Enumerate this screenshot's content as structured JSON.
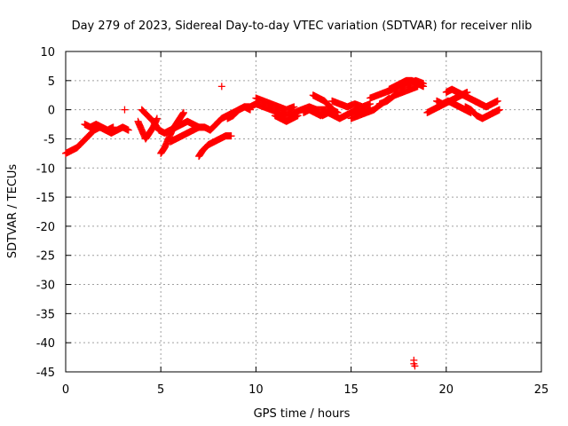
{
  "chart_data": {
    "type": "scatter",
    "title": "Day 279 of 2023, Sidereal Day-to-day VTEC variation (SDTVAR) for receiver nlib",
    "xlabel": "GPS time / hours",
    "ylabel": "SDTVAR / TECUs",
    "xlim": [
      0,
      25
    ],
    "ylim": [
      -45,
      10
    ],
    "grid": true,
    "marker": "plus",
    "color": "#ff0000",
    "x_ticks": [
      "0",
      "5",
      "10",
      "15",
      "20",
      "25"
    ],
    "y_ticks": [
      "10",
      "5",
      "0",
      "-5",
      "-10",
      "-15",
      "-20",
      "-25",
      "-30",
      "-35",
      "-40",
      "-45"
    ],
    "series": [
      {
        "name": "SDTVAR",
        "segments": [
          {
            "x": [
              0.0,
              0.3,
              0.6,
              0.9,
              1.2,
              1.5,
              1.8,
              2.1,
              2.4,
              2.7,
              3.0,
              3.3
            ],
            "y": [
              -7.5,
              -7.0,
              -6.5,
              -5.5,
              -4.5,
              -3.5,
              -3.0,
              -3.5,
              -4.0,
              -3.5,
              -3.0,
              -3.5
            ]
          },
          {
            "x": [
              1.0,
              1.3,
              1.6,
              1.9,
              2.2,
              2.5
            ],
            "y": [
              -2.5,
              -3.0,
              -2.5,
              -3.0,
              -3.5,
              -3.0
            ]
          },
          {
            "x": [
              3.8,
              4.0,
              4.2,
              4.4,
              4.6,
              4.8
            ],
            "y": [
              -2.0,
              -3.5,
              -5.0,
              -4.0,
              -3.0,
              -1.5
            ]
          },
          {
            "x": [
              4.0,
              4.3,
              4.6,
              4.9,
              5.2,
              5.5,
              5.8,
              6.1,
              6.4,
              6.7,
              7.0
            ],
            "y": [
              0.0,
              -1.0,
              -2.0,
              -3.5,
              -4.0,
              -3.5,
              -3.0,
              -2.5,
              -2.0,
              -2.5,
              -3.0
            ]
          },
          {
            "x": [
              5.0,
              5.2,
              5.4,
              5.6,
              5.8,
              6.0,
              6.2
            ],
            "y": [
              -7.5,
              -6.5,
              -5.0,
              -3.5,
              -2.5,
              -1.5,
              -0.5
            ]
          },
          {
            "x": [
              5.5,
              5.8,
              6.1,
              6.4,
              6.7,
              7.0
            ],
            "y": [
              -5.5,
              -5.0,
              -4.5,
              -4.0,
              -3.5,
              -3.0
            ]
          },
          {
            "x": [
              7.0,
              7.2,
              7.5,
              7.8,
              8.1,
              8.4,
              8.7
            ],
            "y": [
              -8.0,
              -7.0,
              -6.0,
              -5.5,
              -5.0,
              -4.5,
              -4.5
            ]
          },
          {
            "x": [
              7.0,
              7.3,
              7.6,
              7.9,
              8.2,
              8.5,
              8.8,
              9.1,
              9.4,
              9.7,
              10.0
            ],
            "y": [
              -3.0,
              -3.0,
              -3.5,
              -2.5,
              -1.5,
              -1.0,
              -0.5,
              0.0,
              0.5,
              0.5,
              1.0
            ]
          },
          {
            "x": [
              8.5,
              8.8,
              9.1,
              9.4,
              9.7
            ],
            "y": [
              -1.5,
              -1.0,
              0.0,
              0.5,
              0.0
            ]
          },
          {
            "x": [
              10.0,
              10.4,
              10.8,
              11.2,
              11.6,
              12.0,
              12.4,
              12.8,
              13.2,
              13.6,
              14.0
            ],
            "y": [
              1.0,
              0.5,
              0.0,
              -0.5,
              -1.0,
              -0.5,
              0.0,
              0.5,
              0.0,
              0.0,
              0.0
            ]
          },
          {
            "x": [
              10.0,
              10.4,
              10.8,
              11.2,
              11.6,
              12.0
            ],
            "y": [
              2.0,
              1.5,
              1.0,
              0.5,
              0.0,
              0.5
            ]
          },
          {
            "x": [
              11.0,
              11.3,
              11.6,
              11.9,
              12.2
            ],
            "y": [
              -1.0,
              -1.5,
              -2.0,
              -1.5,
              -1.0
            ]
          },
          {
            "x": [
              12.5,
              12.8,
              13.1,
              13.4,
              13.7,
              14.0,
              14.3
            ],
            "y": [
              -0.5,
              0.0,
              -0.5,
              -1.0,
              -0.5,
              0.0,
              -0.5
            ]
          },
          {
            "x": [
              13.0,
              13.3,
              13.6,
              13.9,
              14.2
            ],
            "y": [
              2.5,
              2.0,
              1.5,
              0.5,
              -0.5
            ]
          },
          {
            "x": [
              13.5,
              13.8,
              14.1,
              14.4,
              14.7,
              15.0,
              15.3,
              15.6,
              16.0
            ],
            "y": [
              -1.0,
              -0.5,
              -1.0,
              -1.5,
              -1.0,
              -0.5,
              0.0,
              -0.5,
              0.0
            ]
          },
          {
            "x": [
              14.0,
              14.4,
              14.8,
              15.2,
              15.6,
              16.0
            ],
            "y": [
              1.5,
              1.0,
              0.5,
              1.0,
              0.5,
              1.0
            ]
          },
          {
            "x": [
              15.0,
              15.4,
              15.8,
              16.2,
              16.6,
              17.0
            ],
            "y": [
              -1.5,
              -1.0,
              -0.5,
              0.0,
              1.0,
              2.0
            ]
          },
          {
            "x": [
              16.0,
              16.4,
              16.8,
              17.2,
              17.6,
              18.0,
              18.4,
              18.8
            ],
            "y": [
              2.0,
              2.5,
              3.0,
              3.5,
              4.0,
              4.5,
              5.0,
              4.5
            ]
          },
          {
            "x": [
              16.5,
              16.9,
              17.3,
              17.7,
              18.1,
              18.5
            ],
            "y": [
              1.0,
              1.5,
              2.5,
              3.0,
              3.5,
              4.0
            ]
          },
          {
            "x": [
              17.0,
              17.3,
              17.6,
              17.9,
              18.2,
              18.5,
              18.8
            ],
            "y": [
              3.5,
              4.0,
              4.5,
              5.0,
              5.0,
              4.5,
              4.0
            ]
          },
          {
            "x": [
              19.0,
              19.3,
              19.6,
              19.9,
              20.2,
              20.5,
              20.8,
              21.1
            ],
            "y": [
              -0.5,
              0.0,
              0.5,
              1.0,
              1.5,
              2.0,
              2.5,
              3.0
            ]
          },
          {
            "x": [
              19.5,
              19.8,
              20.1,
              20.4,
              20.7,
              21.0,
              21.3
            ],
            "y": [
              1.5,
              1.0,
              1.5,
              1.0,
              0.5,
              0.0,
              -0.5
            ]
          },
          {
            "x": [
              20.0,
              20.3,
              20.6,
              20.9,
              21.2,
              21.5,
              21.8
            ],
            "y": [
              3.0,
              3.5,
              3.0,
              2.5,
              2.0,
              1.5,
              1.0
            ]
          },
          {
            "x": [
              21.0,
              21.3,
              21.6,
              21.9,
              22.2,
              22.5,
              22.8
            ],
            "y": [
              0.5,
              0.0,
              -1.0,
              -1.5,
              -1.0,
              -0.5,
              0.0
            ]
          },
          {
            "x": [
              21.5,
              21.8,
              22.1,
              22.4,
              22.7
            ],
            "y": [
              1.5,
              1.0,
              0.5,
              1.0,
              1.5
            ]
          }
        ],
        "isolated": [
          {
            "x": 3.1,
            "y": 0.0
          },
          {
            "x": 8.2,
            "y": 4.0
          },
          {
            "x": 18.3,
            "y": -43.0
          },
          {
            "x": 18.3,
            "y": -43.6
          },
          {
            "x": 18.35,
            "y": -44.0
          }
        ]
      }
    ]
  }
}
